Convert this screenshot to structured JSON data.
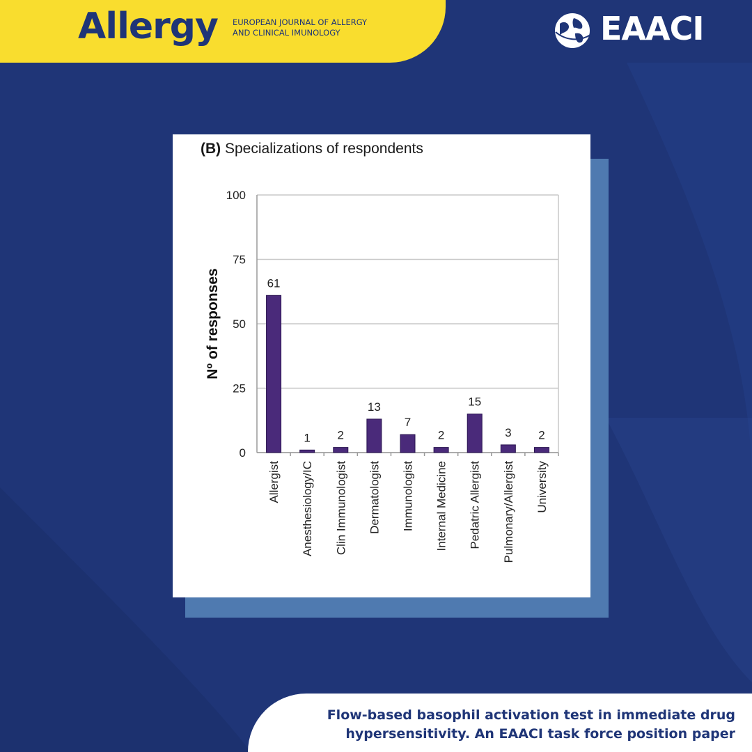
{
  "header": {
    "brand": "Allergy",
    "journal_line1": "EUROPEAN JOURNAL OF ALLERGY",
    "journal_line2": "AND CLINICAL IMUNOLOGY",
    "logo_text": "EAACI"
  },
  "colors": {
    "background": "#1f3577",
    "header_yellow": "#f9dd2e",
    "card_shadow": "#4f7ab0",
    "bar": "#4a2a7a"
  },
  "chart_data": {
    "type": "bar",
    "panel_label": "(B)",
    "title": "Specializations of respondents",
    "ylabel": "Nº of responses",
    "xlabel": "",
    "ylim": [
      0,
      100
    ],
    "yticks": [
      0,
      25,
      50,
      75,
      100
    ],
    "grid": true,
    "categories": [
      "Allergist",
      "Anesthesiology/IC",
      "Clin Immunologist",
      "Dermatologist",
      "Immunologist",
      "Internal Medicine",
      "Pedatric Allergist",
      "Pulmonary/Allergist",
      "University"
    ],
    "values": [
      61,
      1,
      2,
      13,
      7,
      2,
      15,
      3,
      2
    ],
    "data_labels": [
      "61",
      "1",
      "2",
      "13",
      "7",
      "2",
      "15",
      "3",
      "2"
    ]
  },
  "footer": {
    "line1": "Flow-based basophil activation test in immediate drug",
    "line2": "hypersensitivity. An EAACI task force position paper"
  }
}
